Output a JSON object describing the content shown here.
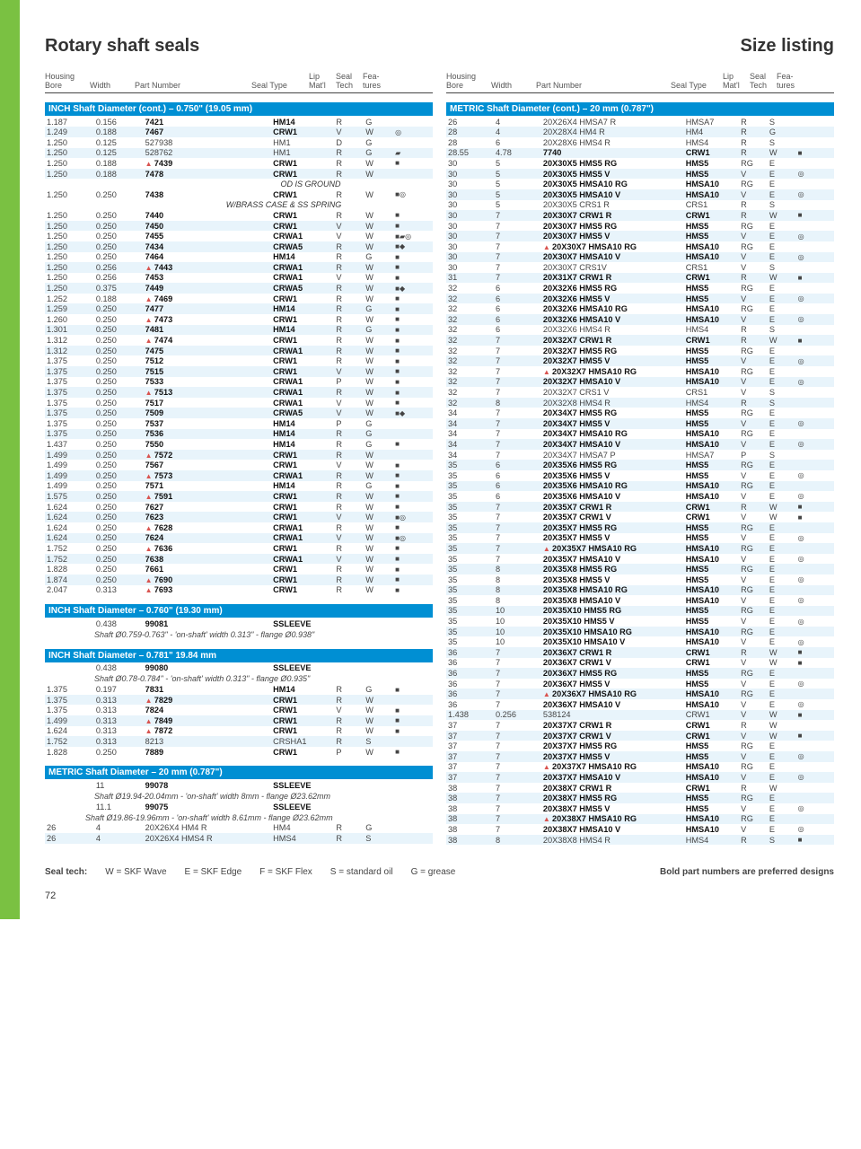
{
  "page": {
    "title_left": "Rotary shaft seals",
    "title_right": "Size listing",
    "page_number": "72"
  },
  "headers": {
    "housing_bore_t": "Housing",
    "housing_bore_b": "Bore",
    "width": "Width",
    "part_number": "Part Number",
    "seal_type": "Seal Type",
    "lip_t": "Lip",
    "lip_b": "Mat'l",
    "seal_t": "Seal",
    "seal_b": "Tech",
    "fea_t": "Fea-",
    "fea_b": "tures"
  },
  "legend": {
    "label": "Seal tech:",
    "w": "W = SKF Wave",
    "e": "E = SKF Edge",
    "f": "F = SKF Flex",
    "s": "S = standard oil",
    "g": "G = grease",
    "right": "Bold part numbers are preferred designs"
  },
  "sections": {
    "inch_cont": "INCH Shaft Diameter (cont.)  –  0.750\"  (19.05 mm)",
    "inch_760": "INCH Shaft Diameter  –  0.760\"  (19.30 mm)",
    "inch_781": "INCH Shaft Diameter  –  0.781\"  19.84 mm",
    "metric_20": "METRIC Shaft Diameter  –  20 mm  (0.787\")",
    "metric_cont": "METRIC Shaft Diameter (cont.)  – 20 mm   (0.787\")"
  },
  "notes": {
    "od_ground": "OD IS GROUND",
    "brass": "W/BRASS CASE & SS SPRING",
    "n760": "Shaft Ø0.759-0.763\" - 'on-shaft' width 0.313\" - flange Ø0.938\"",
    "n781": "Shaft Ø0.78-0.784\" - 'on-shaft' width 0.313\" - flange Ø0.935\"",
    "n20a": "Shaft Ø19.94-20.04mm - 'on-shaft' width 8mm - flange Ø23.62mm",
    "n20b": "Shaft Ø19.86-19.96mm - 'on-shaft' width 8.61mm - flange Ø23.62mm"
  },
  "left_inch_cont": [
    [
      "1.187",
      "0.156",
      "",
      "7421",
      "HM14",
      "R",
      "G",
      "",
      1
    ],
    [
      "1.249",
      "0.188",
      "",
      "7467",
      "CRW1",
      "V",
      "W",
      "◎",
      1
    ],
    [
      "1.250",
      "0.125",
      "",
      "527938",
      "HM1",
      "D",
      "G",
      "",
      0
    ],
    [
      "1.250",
      "0.125",
      "",
      "528762",
      "HM1",
      "R",
      "G",
      "▰",
      0
    ],
    [
      "1.250",
      "0.188",
      "▲",
      "7439",
      "CRW1",
      "R",
      "W",
      "■",
      1
    ],
    [
      "1.250",
      "0.188",
      "",
      "7478",
      "CRW1",
      "R",
      "W",
      "",
      1
    ]
  ],
  "left_inch_cont2": [
    [
      "1.250",
      "0.250",
      "",
      "7438",
      "CRW1",
      "R",
      "W",
      "■◎",
      1
    ]
  ],
  "left_inch_cont3": [
    [
      "1.250",
      "0.250",
      "",
      "7440",
      "CRW1",
      "R",
      "W",
      "■",
      1
    ],
    [
      "1.250",
      "0.250",
      "",
      "7450",
      "CRW1",
      "V",
      "W",
      "■",
      1
    ],
    [
      "1.250",
      "0.250",
      "",
      "7455",
      "CRWA1",
      "V",
      "W",
      "■▰◎",
      1
    ],
    [
      "1.250",
      "0.250",
      "",
      "7434",
      "CRWA5",
      "R",
      "W",
      "■◆",
      1
    ],
    [
      "1.250",
      "0.250",
      "",
      "7464",
      "HM14",
      "R",
      "G",
      "■",
      1
    ],
    [
      "1.250",
      "0.256",
      "▲",
      "7443",
      "CRWA1",
      "R",
      "W",
      "■",
      1
    ],
    [
      "1.250",
      "0.256",
      "",
      "7453",
      "CRWA1",
      "V",
      "W",
      "■",
      1
    ],
    [
      "1.250",
      "0.375",
      "",
      "7449",
      "CRWA5",
      "R",
      "W",
      "■◆",
      1
    ],
    [
      "1.252",
      "0.188",
      "▲",
      "7469",
      "CRW1",
      "R",
      "W",
      "■",
      1
    ],
    [
      "1.259",
      "0.250",
      "",
      "7477",
      "HM14",
      "R",
      "G",
      "■",
      1
    ],
    [
      "1.260",
      "0.250",
      "▲",
      "7473",
      "CRW1",
      "R",
      "W",
      "■",
      1
    ],
    [
      "1.301",
      "0.250",
      "",
      "7481",
      "HM14",
      "R",
      "G",
      "■",
      1
    ],
    [
      "1.312",
      "0.250",
      "▲",
      "7474",
      "CRW1",
      "R",
      "W",
      "■",
      1
    ],
    [
      "1.312",
      "0.250",
      "",
      "7475",
      "CRWA1",
      "R",
      "W",
      "■",
      1
    ],
    [
      "1.375",
      "0.250",
      "",
      "7512",
      "CRW1",
      "R",
      "W",
      "■",
      1
    ],
    [
      "1.375",
      "0.250",
      "",
      "7515",
      "CRW1",
      "V",
      "W",
      "■",
      1
    ],
    [
      "1.375",
      "0.250",
      "",
      "7533",
      "CRWA1",
      "P",
      "W",
      "■",
      1
    ],
    [
      "1.375",
      "0.250",
      "▲",
      "7513",
      "CRWA1",
      "R",
      "W",
      "■",
      1
    ],
    [
      "1.375",
      "0.250",
      "",
      "7517",
      "CRWA1",
      "V",
      "W",
      "■",
      1
    ],
    [
      "1.375",
      "0.250",
      "",
      "7509",
      "CRWA5",
      "V",
      "W",
      "■◆",
      1
    ],
    [
      "1.375",
      "0.250",
      "",
      "7537",
      "HM14",
      "P",
      "G",
      "",
      1
    ],
    [
      "1.375",
      "0.250",
      "",
      "7536",
      "HM14",
      "R",
      "G",
      "",
      1
    ],
    [
      "1.437",
      "0.250",
      "",
      "7550",
      "HM14",
      "R",
      "G",
      "■",
      1
    ],
    [
      "1.499",
      "0.250",
      "▲",
      "7572",
      "CRW1",
      "R",
      "W",
      "",
      1
    ],
    [
      "1.499",
      "0.250",
      "",
      "7567",
      "CRW1",
      "V",
      "W",
      "■",
      1
    ],
    [
      "1.499",
      "0.250",
      "▲",
      "7573",
      "CRWA1",
      "R",
      "W",
      "■",
      1
    ],
    [
      "1.499",
      "0.250",
      "",
      "7571",
      "HM14",
      "R",
      "G",
      "■",
      1
    ],
    [
      "1.575",
      "0.250",
      "▲",
      "7591",
      "CRW1",
      "R",
      "W",
      "■",
      1
    ],
    [
      "1.624",
      "0.250",
      "",
      "7627",
      "CRW1",
      "R",
      "W",
      "■",
      1
    ],
    [
      "1.624",
      "0.250",
      "",
      "7623",
      "CRW1",
      "V",
      "W",
      "■◎",
      1
    ],
    [
      "1.624",
      "0.250",
      "▲",
      "7628",
      "CRWA1",
      "R",
      "W",
      "■",
      1
    ],
    [
      "1.624",
      "0.250",
      "",
      "7624",
      "CRWA1",
      "V",
      "W",
      "■◎",
      1
    ],
    [
      "1.752",
      "0.250",
      "▲",
      "7636",
      "CRW1",
      "R",
      "W",
      "■",
      1
    ],
    [
      "1.752",
      "0.250",
      "",
      "7638",
      "CRWA1",
      "V",
      "W",
      "■",
      1
    ],
    [
      "1.828",
      "0.250",
      "",
      "7661",
      "CRW1",
      "R",
      "W",
      "■",
      1
    ],
    [
      "1.874",
      "0.250",
      "▲",
      "7690",
      "CRW1",
      "R",
      "W",
      "■",
      1
    ],
    [
      "2.047",
      "0.313",
      "▲",
      "7693",
      "CRW1",
      "R",
      "W",
      "■",
      1
    ]
  ],
  "left_760": [
    [
      "",
      "0.438",
      "",
      "99081",
      "SSLEEVE",
      "",
      "",
      "",
      1
    ]
  ],
  "left_781": [
    [
      "",
      "0.438",
      "",
      "99080",
      "SSLEEVE",
      "",
      "",
      "",
      1
    ]
  ],
  "left_781b": [
    [
      "1.375",
      "0.197",
      "",
      "7831",
      "HM14",
      "R",
      "G",
      "■",
      1
    ],
    [
      "1.375",
      "0.313",
      "▲",
      "7829",
      "CRW1",
      "R",
      "W",
      "",
      1
    ],
    [
      "1.375",
      "0.313",
      "",
      "7824",
      "CRW1",
      "V",
      "W",
      "■",
      1
    ],
    [
      "1.499",
      "0.313",
      "▲",
      "7849",
      "CRW1",
      "R",
      "W",
      "■",
      1
    ],
    [
      "1.624",
      "0.313",
      "▲",
      "7872",
      "CRW1",
      "R",
      "W",
      "■",
      1
    ],
    [
      "1.752",
      "0.313",
      "",
      "8213",
      "CRSHA1",
      "R",
      "S",
      "",
      0
    ],
    [
      "1.828",
      "0.250",
      "",
      "7889",
      "CRW1",
      "P",
      "W",
      "■",
      1
    ]
  ],
  "left_metric": [
    [
      "",
      "11",
      "",
      "99078",
      "SSLEEVE",
      "",
      "",
      "",
      1
    ]
  ],
  "left_metric2": [
    [
      "",
      "11.1",
      "",
      "99075",
      "SSLEEVE",
      "",
      "",
      "",
      1
    ]
  ],
  "left_metric3": [
    [
      "26",
      "4",
      "",
      "20X26X4 HM4 R",
      "HM4",
      "R",
      "G",
      "",
      0
    ],
    [
      "26",
      "4",
      "",
      "20X26X4 HMS4 R",
      "HMS4",
      "R",
      "S",
      "",
      0
    ]
  ],
  "right": [
    [
      "26",
      "4",
      "",
      "20X26X4 HMSA7 R",
      "HMSA7",
      "R",
      "S",
      "",
      0
    ],
    [
      "28",
      "4",
      "",
      "20X28X4 HM4 R",
      "HM4",
      "R",
      "G",
      "",
      0
    ],
    [
      "28",
      "6",
      "",
      "20X28X6 HMS4 R",
      "HMS4",
      "R",
      "S",
      "",
      0
    ],
    [
      "28.55",
      "4.78",
      "",
      "7740",
      "CRW1",
      "R",
      "W",
      "■",
      1
    ],
    [
      "30",
      "5",
      "",
      "20X30X5 HMS5 RG",
      "HMS5",
      "RG",
      "E",
      "",
      1
    ],
    [
      "30",
      "5",
      "",
      "20X30X5 HMS5 V",
      "HMS5",
      "V",
      "E",
      "◎",
      1
    ],
    [
      "30",
      "5",
      "",
      "20X30X5 HMSA10 RG",
      "HMSA10",
      "RG",
      "E",
      "",
      1
    ],
    [
      "30",
      "5",
      "",
      "20X30X5 HMSA10 V",
      "HMSA10",
      "V",
      "E",
      "◎",
      1
    ],
    [
      "30",
      "5",
      "",
      "20X30X5 CRS1 R",
      "CRS1",
      "R",
      "S",
      "",
      0
    ],
    [
      "30",
      "7",
      "",
      "20X30X7 CRW1 R",
      "CRW1",
      "R",
      "W",
      "■",
      1
    ],
    [
      "30",
      "7",
      "",
      "20X30X7 HMS5 RG",
      "HMS5",
      "RG",
      "E",
      "",
      1
    ],
    [
      "30",
      "7",
      "",
      "20X30X7 HMS5 V",
      "HMS5",
      "V",
      "E",
      "◎",
      1
    ],
    [
      "30",
      "7",
      "▲",
      "20X30X7 HMSA10 RG",
      "HMSA10",
      "RG",
      "E",
      "",
      1
    ],
    [
      "30",
      "7",
      "",
      "20X30X7 HMSA10 V",
      "HMSA10",
      "V",
      "E",
      "◎",
      1
    ],
    [
      "30",
      "7",
      "",
      "20X30X7 CRS1V",
      "CRS1",
      "V",
      "S",
      "",
      0
    ],
    [
      "31",
      "7",
      "",
      "20X31X7 CRW1 R",
      "CRW1",
      "R",
      "W",
      "■",
      1
    ],
    [
      "32",
      "6",
      "",
      "20X32X6 HMS5 RG",
      "HMS5",
      "RG",
      "E",
      "",
      1
    ],
    [
      "32",
      "6",
      "",
      "20X32X6 HMS5 V",
      "HMS5",
      "V",
      "E",
      "◎",
      1
    ],
    [
      "32",
      "6",
      "",
      "20X32X6 HMSA10 RG",
      "HMSA10",
      "RG",
      "E",
      "",
      1
    ],
    [
      "32",
      "6",
      "",
      "20X32X6 HMSA10 V",
      "HMSA10",
      "V",
      "E",
      "◎",
      1
    ],
    [
      "32",
      "6",
      "",
      "20X32X6 HMS4 R",
      "HMS4",
      "R",
      "S",
      "",
      0
    ],
    [
      "32",
      "7",
      "",
      "20X32X7 CRW1 R",
      "CRW1",
      "R",
      "W",
      "■",
      1
    ],
    [
      "32",
      "7",
      "",
      "20X32X7 HMS5 RG",
      "HMS5",
      "RG",
      "E",
      "",
      1
    ],
    [
      "32",
      "7",
      "",
      "20X32X7 HMS5 V",
      "HMS5",
      "V",
      "E",
      "◎",
      1
    ],
    [
      "32",
      "7",
      "▲",
      "20X32X7 HMSA10 RG",
      "HMSA10",
      "RG",
      "E",
      "",
      1
    ],
    [
      "32",
      "7",
      "",
      "20X32X7 HMSA10 V",
      "HMSA10",
      "V",
      "E",
      "◎",
      1
    ],
    [
      "32",
      "7",
      "",
      "20X32X7 CRS1 V",
      "CRS1",
      "V",
      "S",
      "",
      0
    ],
    [
      "32",
      "8",
      "",
      "20X32X8 HMS4 R",
      "HMS4",
      "R",
      "S",
      "",
      0
    ],
    [
      "34",
      "7",
      "",
      "20X34X7 HMS5 RG",
      "HMS5",
      "RG",
      "E",
      "",
      1
    ],
    [
      "34",
      "7",
      "",
      "20X34X7 HMS5 V",
      "HMS5",
      "V",
      "E",
      "◎",
      1
    ],
    [
      "34",
      "7",
      "",
      "20X34X7 HMSA10 RG",
      "HMSA10",
      "RG",
      "E",
      "",
      1
    ],
    [
      "34",
      "7",
      "",
      "20X34X7 HMSA10 V",
      "HMSA10",
      "V",
      "E",
      "◎",
      1
    ],
    [
      "34",
      "7",
      "",
      "20X34X7 HMSA7 P",
      "HMSA7",
      "P",
      "S",
      "",
      0
    ],
    [
      "35",
      "6",
      "",
      "20X35X6 HMS5 RG",
      "HMS5",
      "RG",
      "E",
      "",
      1
    ],
    [
      "35",
      "6",
      "",
      "20X35X6 HMS5 V",
      "HMS5",
      "V",
      "E",
      "◎",
      1
    ],
    [
      "35",
      "6",
      "",
      "20X35X6 HMSA10 RG",
      "HMSA10",
      "RG",
      "E",
      "",
      1
    ],
    [
      "35",
      "6",
      "",
      "20X35X6 HMSA10 V",
      "HMSA10",
      "V",
      "E",
      "◎",
      1
    ],
    [
      "35",
      "7",
      "",
      "20X35X7 CRW1 R",
      "CRW1",
      "R",
      "W",
      "■",
      1
    ],
    [
      "35",
      "7",
      "",
      "20X35X7 CRW1 V",
      "CRW1",
      "V",
      "W",
      "■",
      1
    ],
    [
      "35",
      "7",
      "",
      "20X35X7 HMS5 RG",
      "HMS5",
      "RG",
      "E",
      "",
      1
    ],
    [
      "35",
      "7",
      "",
      "20X35X7 HMS5 V",
      "HMS5",
      "V",
      "E",
      "◎",
      1
    ],
    [
      "35",
      "7",
      "▲",
      "20X35X7 HMSA10 RG",
      "HMSA10",
      "RG",
      "E",
      "",
      1
    ],
    [
      "35",
      "7",
      "",
      "20X35X7 HMSA10 V",
      "HMSA10",
      "V",
      "E",
      "◎",
      1
    ],
    [
      "35",
      "8",
      "",
      "20X35X8 HMS5 RG",
      "HMS5",
      "RG",
      "E",
      "",
      1
    ],
    [
      "35",
      "8",
      "",
      "20X35X8 HMS5 V",
      "HMS5",
      "V",
      "E",
      "◎",
      1
    ],
    [
      "35",
      "8",
      "",
      "20X35X8 HMSA10 RG",
      "HMSA10",
      "RG",
      "E",
      "",
      1
    ],
    [
      "35",
      "8",
      "",
      "20X35X8 HMSA10 V",
      "HMSA10",
      "V",
      "E",
      "◎",
      1
    ],
    [
      "35",
      "10",
      "",
      "20X35X10 HMS5 RG",
      "HMS5",
      "RG",
      "E",
      "",
      1
    ],
    [
      "35",
      "10",
      "",
      "20X35X10 HMS5 V",
      "HMS5",
      "V",
      "E",
      "◎",
      1
    ],
    [
      "35",
      "10",
      "",
      "20X35X10 HMSA10 RG",
      "HMSA10",
      "RG",
      "E",
      "",
      1
    ],
    [
      "35",
      "10",
      "",
      "20X35X10 HMSA10 V",
      "HMSA10",
      "V",
      "E",
      "◎",
      1
    ],
    [
      "36",
      "7",
      "",
      "20X36X7 CRW1 R",
      "CRW1",
      "R",
      "W",
      "■",
      1
    ],
    [
      "36",
      "7",
      "",
      "20X36X7 CRW1 V",
      "CRW1",
      "V",
      "W",
      "■",
      1
    ],
    [
      "36",
      "7",
      "",
      "20X36X7 HMS5 RG",
      "HMS5",
      "RG",
      "E",
      "",
      1
    ],
    [
      "36",
      "7",
      "",
      "20X36X7 HMS5 V",
      "HMS5",
      "V",
      "E",
      "◎",
      1
    ],
    [
      "36",
      "7",
      "▲",
      "20X36X7 HMSA10 RG",
      "HMSA10",
      "RG",
      "E",
      "",
      1
    ],
    [
      "36",
      "7",
      "",
      "20X36X7 HMSA10 V",
      "HMSA10",
      "V",
      "E",
      "◎",
      1
    ],
    [
      "1.438",
      "0.256",
      "",
      "538124",
      "CRW1",
      "V",
      "W",
      "■",
      0
    ],
    [
      "37",
      "7",
      "",
      "20X37X7 CRW1 R",
      "CRW1",
      "R",
      "W",
      "",
      1
    ],
    [
      "37",
      "7",
      "",
      "20X37X7 CRW1 V",
      "CRW1",
      "V",
      "W",
      "■",
      1
    ],
    [
      "37",
      "7",
      "",
      "20X37X7 HMS5 RG",
      "HMS5",
      "RG",
      "E",
      "",
      1
    ],
    [
      "37",
      "7",
      "",
      "20X37X7 HMS5 V",
      "HMS5",
      "V",
      "E",
      "◎",
      1
    ],
    [
      "37",
      "7",
      "▲",
      "20X37X7 HMSA10 RG",
      "HMSA10",
      "RG",
      "E",
      "",
      1
    ],
    [
      "37",
      "7",
      "",
      "20X37X7 HMSA10 V",
      "HMSA10",
      "V",
      "E",
      "◎",
      1
    ],
    [
      "38",
      "7",
      "",
      "20X38X7 CRW1 R",
      "CRW1",
      "R",
      "W",
      "",
      1
    ],
    [
      "38",
      "7",
      "",
      "20X38X7 HMS5 RG",
      "HMS5",
      "RG",
      "E",
      "",
      1
    ],
    [
      "38",
      "7",
      "",
      "20X38X7 HMS5 V",
      "HMS5",
      "V",
      "E",
      "◎",
      1
    ],
    [
      "38",
      "7",
      "▲",
      "20X38X7 HMSA10 RG",
      "HMSA10",
      "RG",
      "E",
      "",
      1
    ],
    [
      "38",
      "7",
      "",
      "20X38X7 HMSA10 V",
      "HMSA10",
      "V",
      "E",
      "◎",
      1
    ],
    [
      "38",
      "8",
      "",
      "20X38X8 HMS4 R",
      "HMS4",
      "R",
      "S",
      "■",
      0
    ]
  ]
}
